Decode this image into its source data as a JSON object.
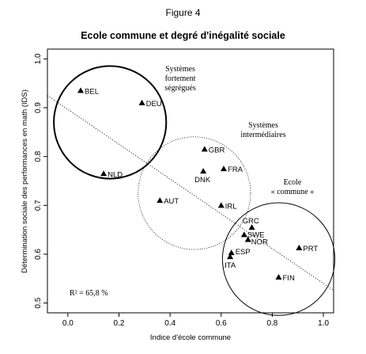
{
  "figure_label": "Figure 4",
  "chart_data": {
    "type": "scatter",
    "title": "Ecole commune et degré d'inégalité sociale",
    "xlabel": "Indice d'école commune",
    "ylabel": "Détermination sociale des performances en math (IDS)",
    "xlim": [
      -0.08,
      1.04
    ],
    "ylim": [
      0.48,
      1.02
    ],
    "x_ticks": [
      "0.0",
      "0.2",
      "0.4",
      "0.6",
      "0.8",
      "1.0"
    ],
    "y_ticks": [
      "0.5",
      "0.6",
      "0.7",
      "0.8",
      "0.9",
      "1.0"
    ],
    "points": [
      {
        "label": "BEL",
        "x": 0.05,
        "y": 0.935
      },
      {
        "label": "DEU",
        "x": 0.29,
        "y": 0.91
      },
      {
        "label": "NLD",
        "x": 0.14,
        "y": 0.765
      },
      {
        "label": "GBR",
        "x": 0.535,
        "y": 0.815
      },
      {
        "label": "DNK",
        "x": 0.53,
        "y": 0.77
      },
      {
        "label": "FRA",
        "x": 0.61,
        "y": 0.775
      },
      {
        "label": "AUT",
        "x": 0.36,
        "y": 0.71
      },
      {
        "label": "IRL",
        "x": 0.6,
        "y": 0.7
      },
      {
        "label": "GRC",
        "x": 0.72,
        "y": 0.655
      },
      {
        "label": "SWE",
        "x": 0.69,
        "y": 0.64
      },
      {
        "label": "NOR",
        "x": 0.705,
        "y": 0.63
      },
      {
        "label": "ESP",
        "x": 0.64,
        "y": 0.603
      },
      {
        "label": "ITA",
        "x": 0.635,
        "y": 0.595
      },
      {
        "label": "PRT",
        "x": 0.905,
        "y": 0.613
      },
      {
        "label": "FIN",
        "x": 0.825,
        "y": 0.553
      }
    ],
    "regression_line": {
      "style": "dotted",
      "x": [
        -0.08,
        1.04
      ],
      "y": [
        0.925,
        0.526
      ]
    },
    "annotation": "R² = 65,8 %",
    "clusters": [
      {
        "label_lines": [
          "Systèmes",
          "fortement",
          "ségrégués"
        ],
        "center_x": 0.165,
        "center_y": 0.87,
        "radius_x": 0.22,
        "line": "solid-thick"
      },
      {
        "label_lines": [
          "Systèmes",
          "intermédiaires"
        ],
        "center_x": 0.495,
        "center_y": 0.725,
        "radius_x": 0.22,
        "line": "dotted"
      },
      {
        "label_lines": [
          "Ecole",
          "« commune «"
        ],
        "center_x": 0.825,
        "center_y": 0.59,
        "radius_x": 0.22,
        "line": "solid-thin"
      }
    ]
  }
}
